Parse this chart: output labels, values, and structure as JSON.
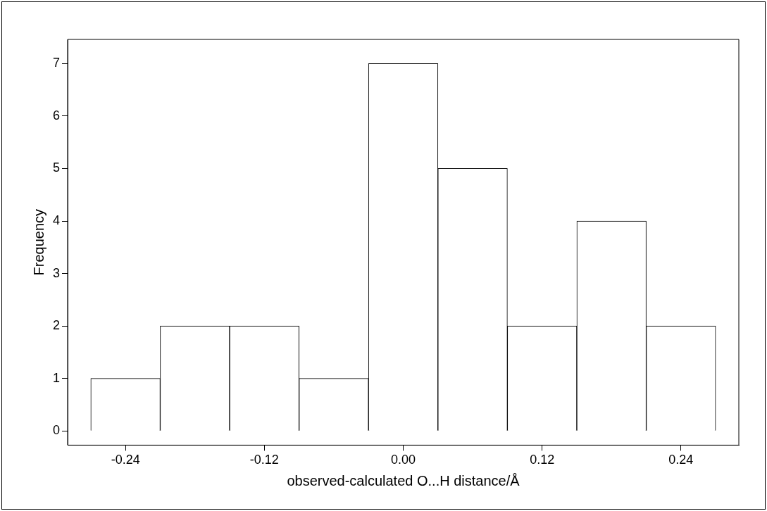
{
  "chart_data": {
    "type": "histogram",
    "xlabel": "observed-calculated O...H distance/Å",
    "ylabel": "Frequency",
    "bins": [
      -0.27,
      -0.21,
      -0.15,
      -0.09,
      -0.03,
      0.03,
      0.09,
      0.15,
      0.21,
      0.27
    ],
    "values": [
      1,
      2,
      2,
      1,
      7,
      5,
      2,
      4,
      2
    ],
    "color": "#ffffff",
    "xlim": [
      -0.29,
      0.29
    ],
    "ylim": [
      -0.27,
      7.46
    ],
    "xticks": [
      -0.24,
      -0.12,
      {
        "value": 0,
        "label": "0.00"
      },
      0.12,
      0.24
    ],
    "yticks": [
      0,
      1,
      2,
      3,
      4,
      5,
      6,
      7
    ],
    "grid": false,
    "legend": false
  }
}
